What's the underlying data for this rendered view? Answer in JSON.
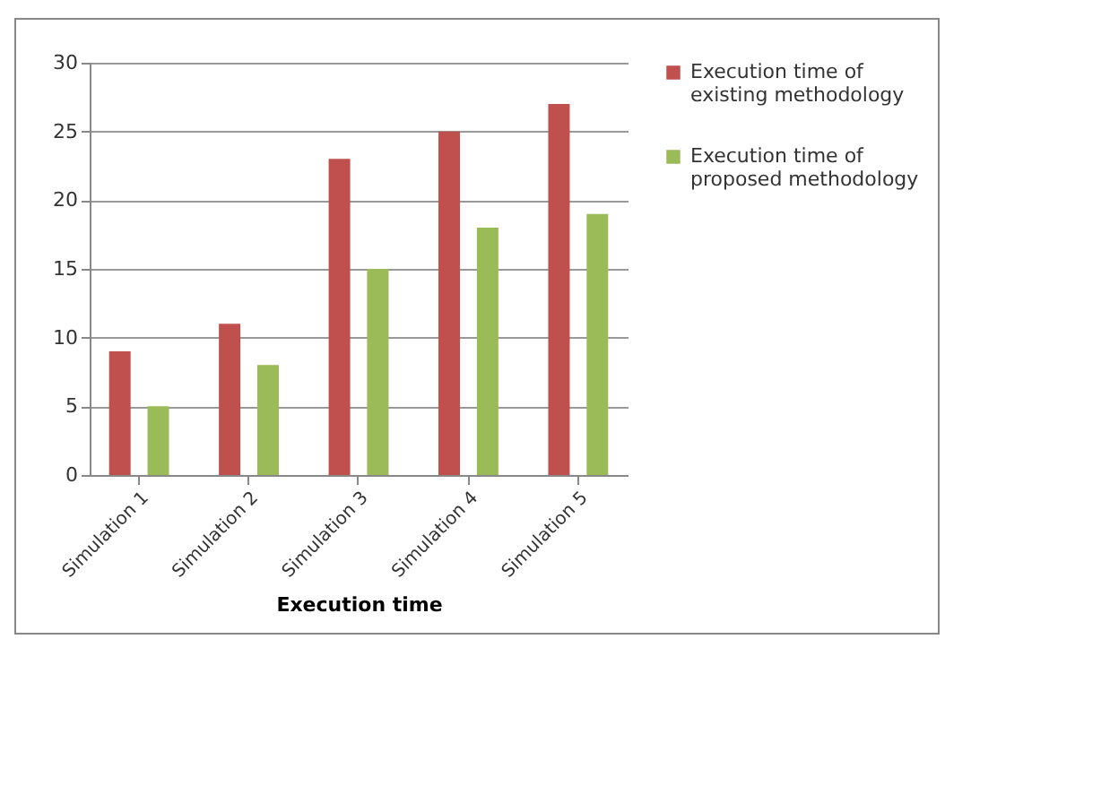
{
  "chart_data": {
    "type": "bar",
    "xlabel": "Execution time",
    "categories": [
      "Simulation 1",
      "Simulation 2",
      "Simulation 3",
      "Simulation 4",
      "Simulation 5"
    ],
    "series": [
      {
        "name": "Execution time of existing methodology",
        "color": "#c0504d",
        "values": [
          9,
          11,
          23,
          25,
          27
        ]
      },
      {
        "name": "Execution time of proposed methodology",
        "color": "#9bbb59",
        "values": [
          5,
          8,
          15,
          18,
          19
        ]
      }
    ],
    "ylim": [
      0,
      30
    ],
    "yticks": [
      0,
      5,
      10,
      15,
      20,
      25,
      30
    ],
    "grid": "y",
    "legend": "right"
  }
}
